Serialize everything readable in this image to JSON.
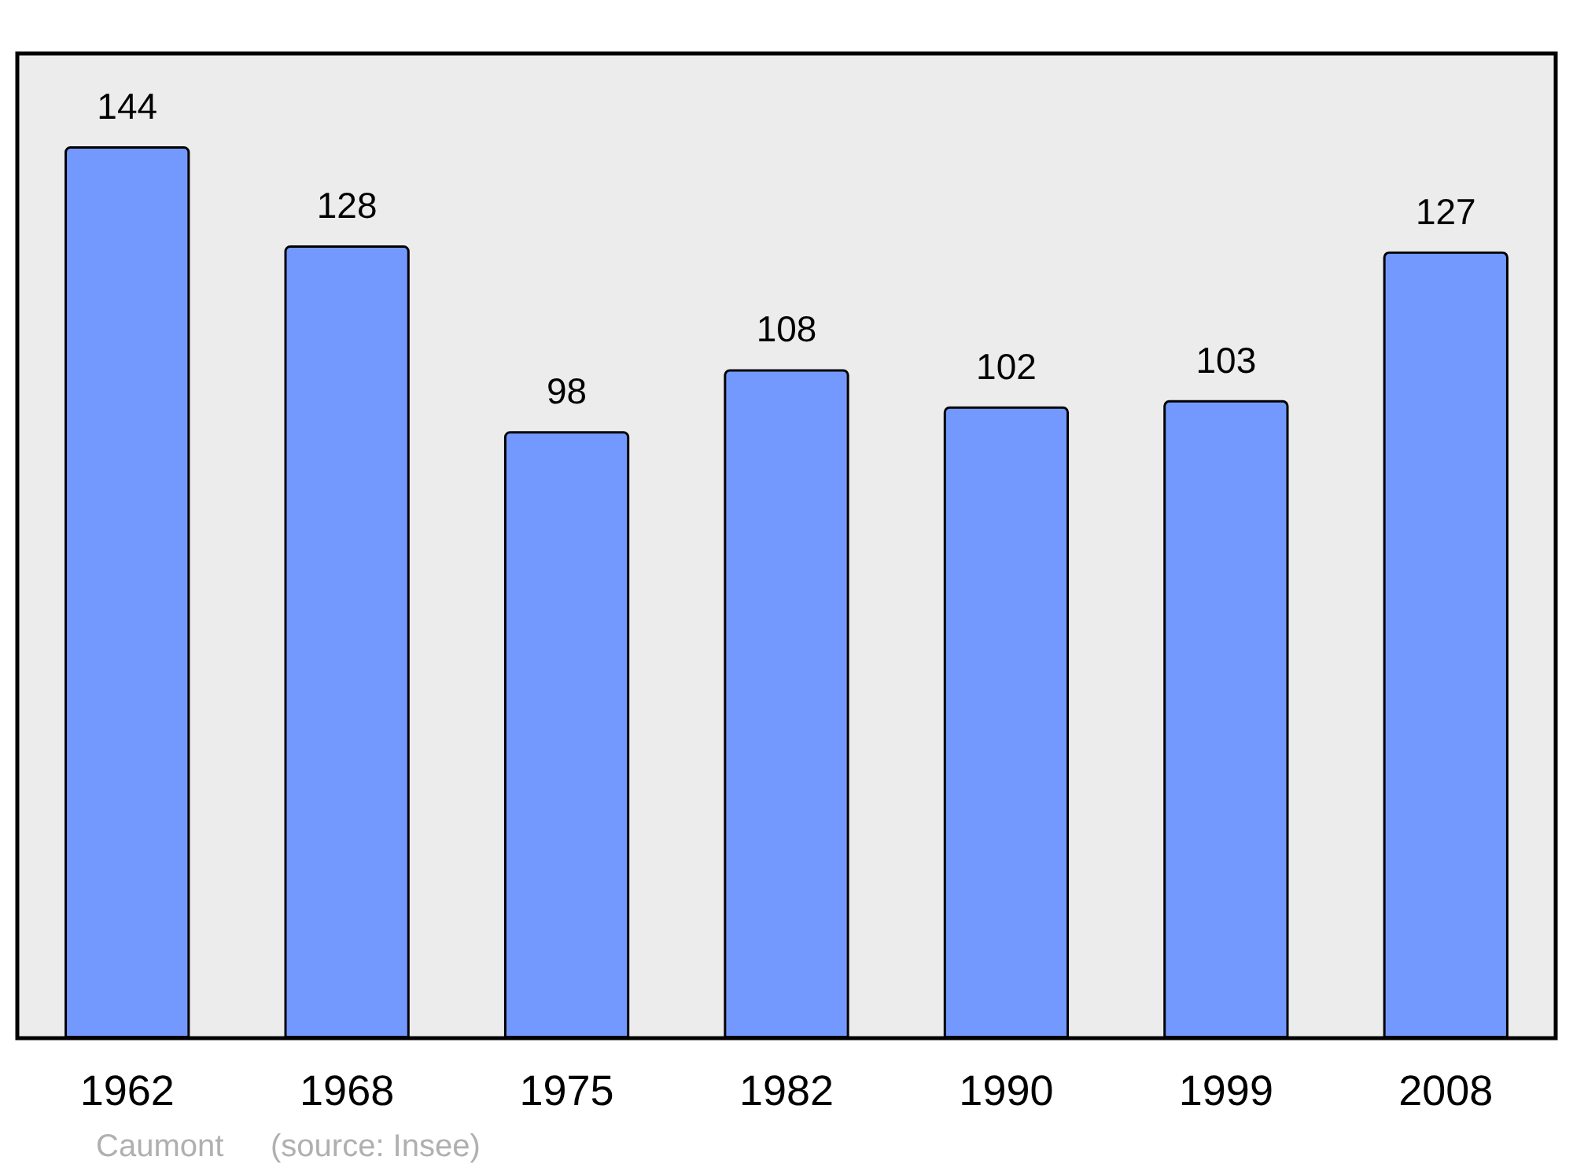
{
  "chart_data": {
    "type": "bar",
    "categories": [
      "1962",
      "1968",
      "1975",
      "1982",
      "1990",
      "1999",
      "2008"
    ],
    "values": [
      144,
      128,
      98,
      108,
      102,
      103,
      127
    ],
    "color": "#7399ff",
    "data_labels": true,
    "grid": false,
    "annotations": [
      "Caumont",
      "(source: Insee)"
    ]
  }
}
